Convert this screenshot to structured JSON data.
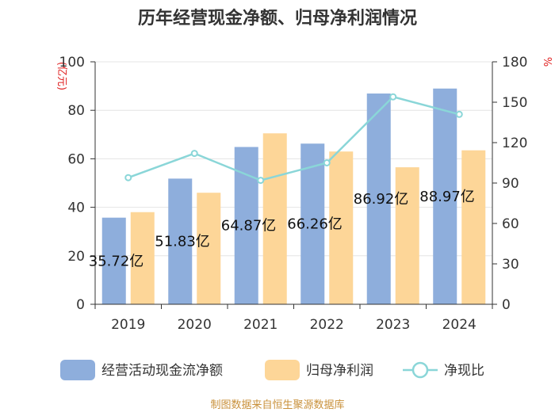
{
  "chart_data": {
    "type": "bar",
    "title": "历年经营现金净额、归母净利润情况",
    "categories": [
      "2019",
      "2020",
      "2021",
      "2022",
      "2023",
      "2024"
    ],
    "series": [
      {
        "name": "经营活动现金流净额",
        "type": "bar",
        "axis": "left",
        "color": "#8eaedc",
        "values": [
          35.72,
          51.83,
          64.87,
          66.26,
          86.92,
          88.97
        ],
        "labels": [
          "35.72亿",
          "51.83亿",
          "64.87亿",
          "66.26亿",
          "86.92亿",
          "88.97亿"
        ]
      },
      {
        "name": "归母净利润",
        "type": "bar",
        "axis": "left",
        "color": "#fdd698",
        "values": [
          38.0,
          46.0,
          70.5,
          63.0,
          56.5,
          63.5
        ]
      },
      {
        "name": "净现比",
        "type": "line",
        "axis": "right",
        "color": "#8ad6d8",
        "values": [
          94,
          112,
          92,
          105,
          154,
          141
        ]
      }
    ],
    "y_left": {
      "label": "(亿元)",
      "min": 0,
      "max": 100,
      "ticks": [
        0,
        20,
        40,
        60,
        80,
        100
      ]
    },
    "y_right": {
      "label": "%",
      "min": 0,
      "max": 180,
      "ticks": [
        0,
        30,
        60,
        90,
        120,
        150,
        180
      ]
    },
    "grid": true,
    "legend_position": "bottom"
  },
  "source": "制图数据来自恒生聚源数据库"
}
